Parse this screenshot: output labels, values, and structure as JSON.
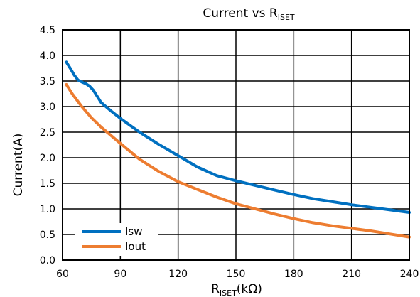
{
  "chart_data": {
    "type": "line",
    "title": {
      "main": "Current vs R",
      "sub": "ISET"
    },
    "xlabel": {
      "main": "R",
      "sub": "ISET",
      "unit": "(kΩ)"
    },
    "ylabel": "Current(A)",
    "xlim": [
      60,
      240
    ],
    "ylim": [
      0,
      4.5
    ],
    "xticks": [
      60,
      90,
      120,
      150,
      180,
      210,
      240
    ],
    "yticks": [
      0.0,
      0.5,
      1.0,
      1.5,
      2.0,
      2.5,
      3.0,
      3.5,
      4.0,
      4.5
    ],
    "grid": true,
    "legend_position": "bottom-left",
    "series": [
      {
        "name": "Isw",
        "color": "#0070C0",
        "x": [
          62,
          64,
          66,
          68,
          70,
          72,
          74,
          76,
          78,
          80,
          85,
          90,
          100,
          110,
          120,
          130,
          140,
          150,
          160,
          170,
          180,
          190,
          200,
          210,
          220,
          230,
          240
        ],
        "y": [
          3.87,
          3.75,
          3.62,
          3.52,
          3.48,
          3.45,
          3.4,
          3.32,
          3.2,
          3.08,
          2.92,
          2.77,
          2.5,
          2.26,
          2.04,
          1.82,
          1.65,
          1.55,
          1.46,
          1.37,
          1.28,
          1.2,
          1.14,
          1.08,
          1.03,
          0.98,
          0.93
        ]
      },
      {
        "name": "Iout",
        "color": "#ED7D31",
        "x": [
          62,
          65,
          70,
          75,
          80,
          85,
          90,
          100,
          110,
          120,
          130,
          140,
          150,
          160,
          170,
          180,
          190,
          200,
          210,
          220,
          230,
          240
        ],
        "y": [
          3.43,
          3.25,
          3.0,
          2.78,
          2.6,
          2.44,
          2.28,
          1.97,
          1.73,
          1.53,
          1.38,
          1.23,
          1.1,
          1.0,
          0.9,
          0.81,
          0.73,
          0.67,
          0.62,
          0.57,
          0.51,
          0.45
        ]
      }
    ]
  }
}
